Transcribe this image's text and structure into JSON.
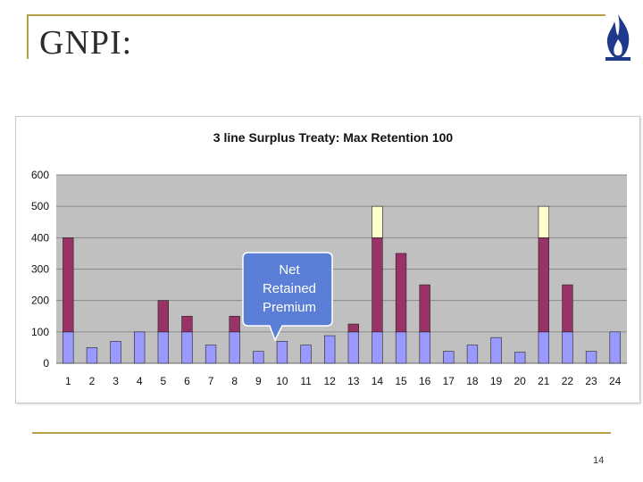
{
  "slide": {
    "title": "GNPI:",
    "page_number": "14"
  },
  "callout": {
    "text_lines": [
      "Net",
      "Retained",
      "Premium"
    ]
  },
  "colors": {
    "rule": "#b5a24a",
    "plot_bg": "#c0c0c0",
    "net_retained": "#9999ff",
    "first_surplus": "#993366",
    "second_surplus": "#ffffcc",
    "callout_bg": "#5b7fd6",
    "logo": "#1f3a8a"
  },
  "icons": {
    "logo": "flame-logo-icon"
  },
  "chart_data": {
    "type": "bar",
    "stacked": true,
    "title": "3 line Surplus Treaty: Max Retention 100",
    "xlabel": "",
    "ylabel": "",
    "ylim": [
      0,
      600
    ],
    "yticks": [
      0,
      100,
      200,
      300,
      400,
      500,
      600
    ],
    "grid": true,
    "legend": "none",
    "categories": [
      "1",
      "2",
      "3",
      "4",
      "5",
      "6",
      "7",
      "8",
      "9",
      "10",
      "11",
      "12",
      "13",
      "14",
      "15",
      "16",
      "17",
      "18",
      "19",
      "20",
      "21",
      "22",
      "23",
      "24"
    ],
    "series": [
      {
        "color": "#9999ff",
        "values": [
          100,
          50,
          70,
          100,
          100,
          100,
          58,
          100,
          38,
          70,
          58,
          88,
          100,
          100,
          100,
          100,
          38,
          58,
          82,
          35,
          100,
          100,
          38,
          100
        ]
      },
      {
        "color": "#993366",
        "values": [
          300,
          0,
          0,
          0,
          100,
          50,
          0,
          50,
          0,
          0,
          0,
          0,
          25,
          300,
          250,
          150,
          0,
          0,
          0,
          0,
          300,
          150,
          0,
          0
        ]
      },
      {
        "color": "#ffffcc",
        "values": [
          0,
          0,
          0,
          0,
          0,
          0,
          0,
          0,
          0,
          0,
          0,
          0,
          0,
          100,
          0,
          0,
          0,
          0,
          0,
          0,
          100,
          0,
          0,
          0
        ]
      }
    ]
  }
}
